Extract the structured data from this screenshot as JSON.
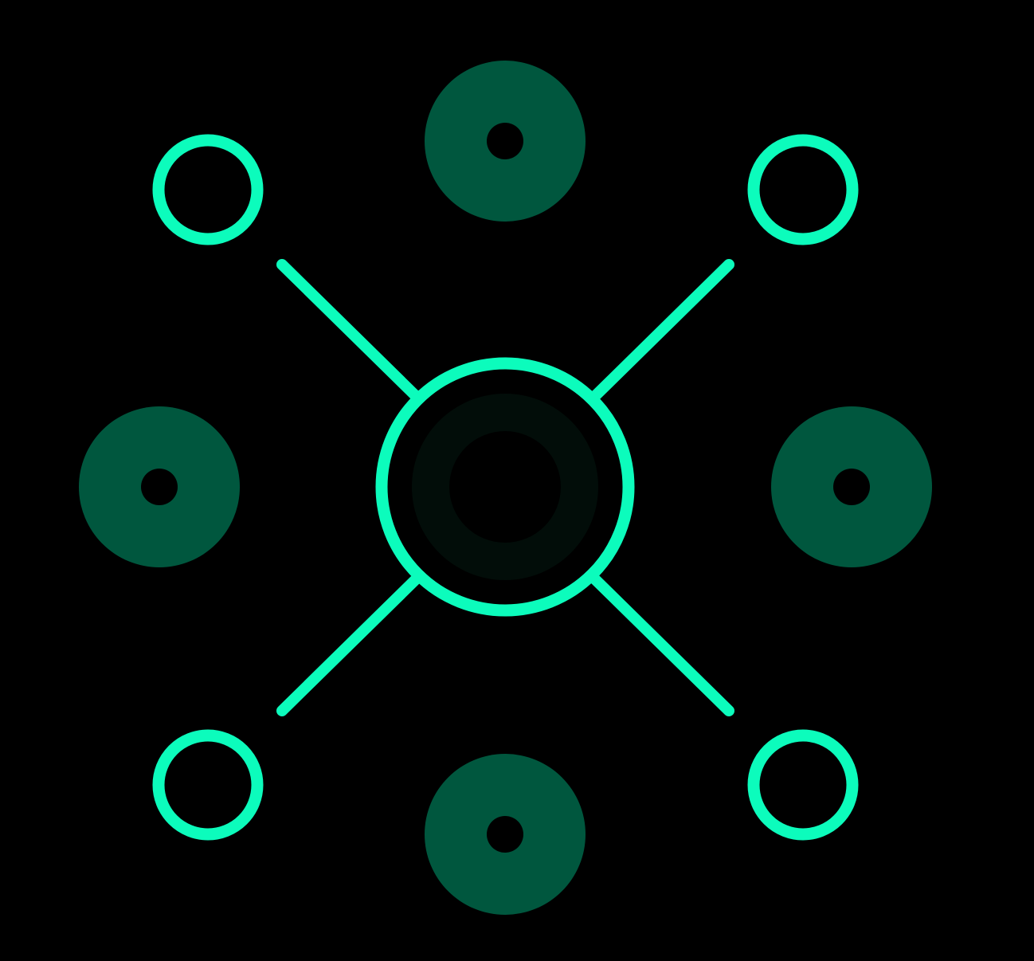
{
  "icon": {
    "name": "network-hub-icon",
    "colors": {
      "background": "#000000",
      "accent": "#0cfcbc",
      "node_fill": "#00573e",
      "center_glow": "#020d09"
    },
    "outline_nodes": [
      "top-left",
      "top-right",
      "bottom-left",
      "bottom-right"
    ],
    "filled_nodes": [
      "top",
      "left",
      "right",
      "bottom"
    ],
    "connectors": [
      "top-left",
      "top-right",
      "bottom-left",
      "bottom-right"
    ]
  }
}
